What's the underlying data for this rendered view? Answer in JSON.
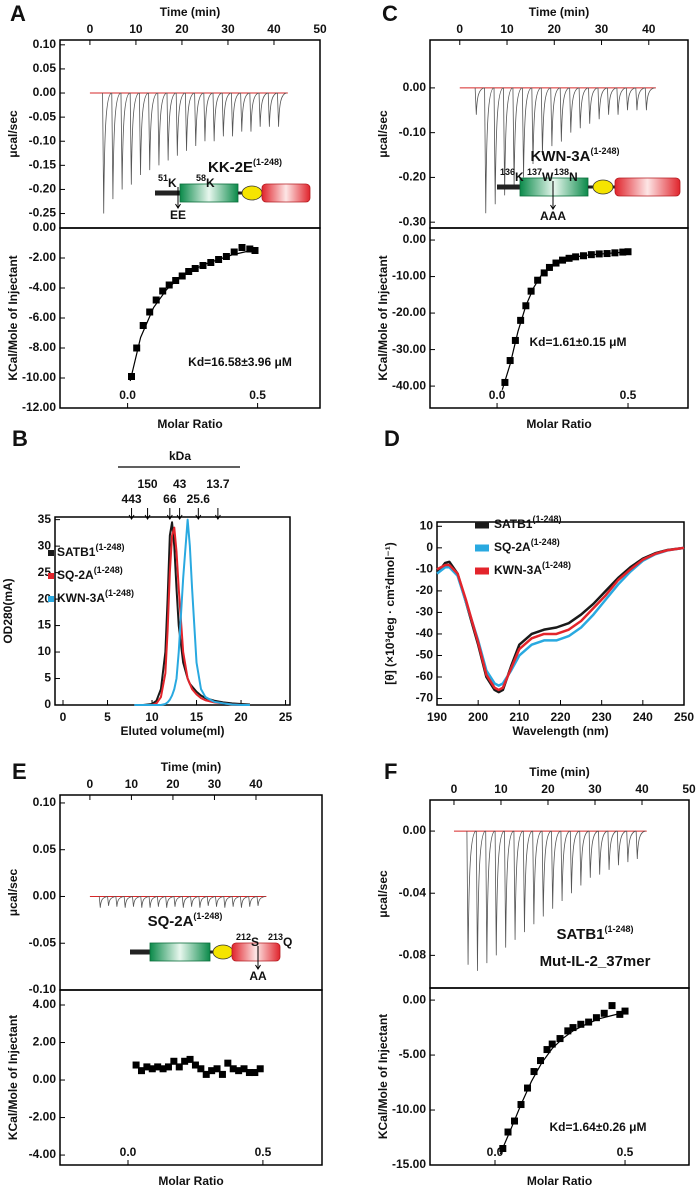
{
  "chart_data": [
    {
      "type": "thermogram",
      "panel": "A",
      "xlabel": "Time (min)",
      "ylabel": "μcal/sec",
      "xlim": [
        -6.5,
        50
      ],
      "ylim": [
        -0.28,
        0.11
      ],
      "xticks": [
        0,
        10,
        20,
        30,
        40,
        50
      ],
      "yticks": [
        {
          "value": 0.1,
          "label": "0.10"
        },
        {
          "value": 0.05,
          "label": "0.05"
        },
        {
          "value": 0,
          "label": "0.00"
        },
        {
          "value": -0.05,
          "label": "-0.05"
        },
        {
          "value": -0.1,
          "label": "-0.10"
        },
        {
          "value": -0.15,
          "label": "-0.15"
        },
        {
          "value": -0.2,
          "label": "-0.20"
        },
        {
          "value": -0.25,
          "label": "-0.25"
        }
      ],
      "x": [
        3,
        5,
        7,
        9,
        11,
        13,
        15,
        17,
        19,
        21,
        23,
        25,
        27,
        29,
        31,
        33,
        35,
        37,
        39,
        41
      ],
      "values": [
        -0.25,
        -0.22,
        -0.2,
        -0.19,
        -0.17,
        -0.16,
        -0.15,
        -0.14,
        -0.13,
        -0.12,
        -0.11,
        -0.1,
        -0.1,
        -0.09,
        -0.09,
        -0.08,
        -0.08,
        -0.07,
        -0.07,
        -0.07
      ],
      "color": "#555555",
      "baseline_color": "#d62728",
      "inset": {
        "label": "KK-2E",
        "label_sup": "(1-248)",
        "sites": [
          {
            "number": "51",
            "residue": "K"
          },
          {
            "number": "58",
            "residue": "K"
          }
        ],
        "mutation": "EE"
      }
    },
    {
      "type": "isotherm",
      "xlabel": "Molar Ratio",
      "ylabel": "KCal/Mole of Injectant",
      "xlim": [
        -0.26,
        0.74
      ],
      "ylim": [
        -12,
        0
      ],
      "xticks": [
        {
          "value": 0,
          "label": "0.0"
        },
        {
          "value": 0.5,
          "label": "0.5"
        }
      ],
      "yticks": [
        {
          "value": 0,
          "label": "0.00"
        },
        {
          "value": -2,
          "label": "-2.00"
        },
        {
          "value": -4,
          "label": "-4.00"
        },
        {
          "value": -6,
          "label": "-6.00"
        },
        {
          "value": -8,
          "label": "-8.00"
        },
        {
          "value": -10,
          "label": "-10.00"
        },
        {
          "value": -12,
          "label": "-12.00"
        }
      ],
      "x": [
        0.015,
        0.035,
        0.06,
        0.085,
        0.11,
        0.135,
        0.16,
        0.185,
        0.21,
        0.235,
        0.26,
        0.29,
        0.32,
        0.35,
        0.38,
        0.41,
        0.44,
        0.47,
        0.49
      ],
      "values": [
        -9.9,
        -8,
        -6.5,
        -5.6,
        -4.8,
        -4.2,
        -3.8,
        -3.5,
        -3.2,
        -2.9,
        -2.7,
        -2.5,
        -2.3,
        -2.1,
        -1.9,
        -1.6,
        -1.3,
        -1.4,
        -1.5
      ],
      "color": "#000000",
      "fit": {
        "x": [
          0.01,
          0.05,
          0.1,
          0.15,
          0.2,
          0.25,
          0.3,
          0.35,
          0.4,
          0.45,
          0.5
        ],
        "values": [
          -10.2,
          -7.3,
          -5.3,
          -4.1,
          -3.3,
          -2.8,
          -2.4,
          -2.1,
          -1.8,
          -1.6,
          -1.4
        ]
      },
      "annotation": "Kd=16.58±3.96 μM"
    },
    {
      "type": "thermogram",
      "panel": "C",
      "xlabel": "Time (min)",
      "ylabel": "μcal/sec",
      "xlim": [
        -6.3,
        48.3
      ],
      "ylim": [
        -0.313,
        0.107
      ],
      "xticks": [
        0,
        10,
        20,
        30,
        40
      ],
      "yticks": [
        {
          "value": 0,
          "label": "0.00"
        },
        {
          "value": -0.1,
          "label": "-0.10"
        },
        {
          "value": -0.2,
          "label": "-0.20"
        },
        {
          "value": -0.3,
          "label": "-0.30"
        }
      ],
      "x": [
        3.5,
        5.5,
        7.5,
        9.5,
        11.5,
        13.5,
        15.5,
        17.5,
        19.5,
        21.5,
        23.5,
        25.5,
        27.5,
        29.5,
        31.5,
        33.5,
        35.5,
        37.5,
        39.5
      ],
      "values": [
        -0.06,
        -0.28,
        -0.26,
        -0.24,
        -0.22,
        -0.2,
        -0.17,
        -0.15,
        -0.13,
        -0.12,
        -0.1,
        -0.09,
        -0.08,
        -0.07,
        -0.06,
        -0.06,
        -0.05,
        -0.05,
        -0.05
      ],
      "color": "#555555",
      "baseline_color": "#d62728",
      "inset": {
        "label": "KWN-3A",
        "label_sup": "(1-248)",
        "sites": [
          {
            "number": "136",
            "residue": "K"
          },
          {
            "number": "137",
            "residue": "W"
          },
          {
            "number": "138",
            "residue": "N"
          }
        ],
        "mutation": "AAA"
      }
    },
    {
      "type": "isotherm",
      "xlabel": "Molar Ratio",
      "ylabel": "KCal/Mole of Injectant",
      "xlim": [
        -0.256,
        0.729
      ],
      "ylim": [
        -46,
        3.3
      ],
      "xticks": [
        {
          "value": 0,
          "label": "0.0"
        },
        {
          "value": 0.5,
          "label": "0.5"
        }
      ],
      "yticks": [
        {
          "value": 0,
          "label": "0.00"
        },
        {
          "value": -10,
          "label": "-10.00"
        },
        {
          "value": -20,
          "label": "-20.00"
        },
        {
          "value": -30,
          "label": "-30.00"
        },
        {
          "value": -40,
          "label": "-40.00"
        }
      ],
      "x": [
        0.03,
        0.05,
        0.07,
        0.09,
        0.11,
        0.13,
        0.155,
        0.18,
        0.2,
        0.225,
        0.25,
        0.275,
        0.3,
        0.33,
        0.36,
        0.39,
        0.42,
        0.45,
        0.48,
        0.5
      ],
      "values": [
        -39,
        -33,
        -27.5,
        -22,
        -18,
        -14,
        -11,
        -9,
        -7.5,
        -6.3,
        -5.5,
        -5,
        -4.6,
        -4.3,
        -4,
        -3.8,
        -3.7,
        -3.5,
        -3.3,
        -3.2
      ],
      "color": "#000000",
      "fit": {
        "x": [
          0.02,
          0.05,
          0.08,
          0.11,
          0.14,
          0.17,
          0.2,
          0.25,
          0.3,
          0.35,
          0.4,
          0.45,
          0.5
        ],
        "values": [
          -41,
          -34,
          -25,
          -18,
          -13,
          -9.5,
          -7.5,
          -5.5,
          -4.6,
          -4.1,
          -3.8,
          -3.5,
          -3.3
        ]
      },
      "annotation": "Kd=1.61±0.15 μM"
    },
    {
      "type": "line",
      "panel": "B",
      "xlabel": "Eluted volume(ml)",
      "ylabel": "OD280(mA)",
      "xlim": [
        -0.9,
        25.5
      ],
      "ylim": [
        0,
        35.5
      ],
      "xticks": [
        0,
        5,
        10,
        15,
        20,
        25
      ],
      "yticks": [
        0,
        5,
        10,
        15,
        20,
        25,
        30,
        35
      ],
      "legend": "upper left",
      "x": [
        8,
        9,
        10,
        10.5,
        11,
        11.5,
        11.75,
        12,
        12.25,
        12.5,
        12.75,
        13,
        13.5,
        14,
        14.25,
        14.5,
        15,
        15.5,
        16,
        17,
        18,
        19,
        20,
        21
      ],
      "series": [
        {
          "name": "SATB1",
          "sup": "(1-248)",
          "color": "#1a1a1a",
          "values": [
            0,
            0,
            0.2,
            0.8,
            3,
            10,
            20,
            32,
            34.5,
            30,
            22,
            15,
            8,
            5,
            4,
            3.5,
            2.5,
            1.8,
            1.3,
            0.8,
            0.5,
            0.3,
            0.2,
            0.1
          ]
        },
        {
          "name": "SQ-2A",
          "sup": "(1-248)",
          "color": "#e3242b",
          "values": [
            0,
            0,
            0,
            0.3,
            1.5,
            6,
            14,
            25,
            32,
            33.5,
            29,
            22,
            10,
            5,
            4,
            3,
            2,
            1.3,
            0.9,
            0.5,
            0.3,
            0.1,
            0,
            0
          ]
        },
        {
          "name": "KWN-3A",
          "sup": "(1-248)",
          "color": "#29a9e0",
          "values": [
            0,
            0,
            0,
            0,
            0,
            0.2,
            0.5,
            1,
            1.8,
            3,
            5,
            10,
            24,
            35,
            30,
            22,
            8,
            3,
            1.5,
            0.6,
            0.3,
            0.1,
            0,
            0
          ]
        }
      ],
      "markers": {
        "title": "kDa",
        "labels": [
          "443",
          "150",
          "66",
          "43",
          "25.6",
          "13.7"
        ],
        "x": [
          7.7,
          9.5,
          12.0,
          13.1,
          15.2,
          17.4
        ]
      }
    },
    {
      "type": "line",
      "panel": "D",
      "xlabel": "Wavelength (nm)",
      "ylabel": "[θ] (×10³deg · cm²dmol⁻¹)",
      "xlim": [
        190,
        250
      ],
      "ylim": [
        -73,
        12
      ],
      "xticks": [
        190,
        200,
        210,
        220,
        230,
        240,
        250
      ],
      "yticks": [
        10,
        0,
        -10,
        -20,
        -30,
        -40,
        -50,
        -60,
        -70
      ],
      "legend": "upper center",
      "x": [
        190,
        192,
        193,
        195,
        197,
        200,
        202,
        204,
        205,
        206,
        208,
        210,
        213,
        216,
        219,
        222,
        225,
        228,
        231,
        234,
        237,
        240,
        243,
        246,
        250
      ],
      "series": [
        {
          "name": "SATB1",
          "sup": "(1-248)",
          "color": "#1a1a1a",
          "values": [
            -12,
            -7,
            -6.5,
            -12,
            -25,
            -45,
            -60,
            -66,
            -67,
            -66,
            -55,
            -45,
            -40,
            -38,
            -37,
            -35,
            -31,
            -26,
            -20,
            -14,
            -9,
            -5,
            -2.5,
            -1,
            0
          ]
        },
        {
          "name": "SQ-2A",
          "sup": "(1-248)",
          "color": "#29a9e0",
          "values": [
            -12,
            -9,
            -9,
            -13,
            -25,
            -43,
            -57,
            -63,
            -64,
            -63,
            -57,
            -50,
            -45,
            -43,
            -43,
            -41,
            -37,
            -31,
            -24,
            -17,
            -11,
            -6,
            -3,
            -1.2,
            0
          ]
        },
        {
          "name": "KWN-3A",
          "sup": "(1-248)",
          "color": "#e3242b",
          "values": [
            -10,
            -8,
            -8,
            -12,
            -24,
            -44,
            -59,
            -65,
            -66,
            -65,
            -56,
            -47,
            -42,
            -40,
            -40,
            -38,
            -34,
            -28,
            -22,
            -15,
            -10,
            -5.5,
            -2.8,
            -1.1,
            0
          ]
        }
      ]
    },
    {
      "type": "thermogram",
      "panel": "E",
      "xlabel": "Time (min)",
      "ylabel": "μcal/sec",
      "xlim": [
        -7.2,
        55.9
      ],
      "ylim": [
        -0.1,
        0.1085
      ],
      "xticks": [
        0,
        10,
        20,
        30,
        40
      ],
      "yticks": [
        {
          "value": 0.1,
          "label": "0.10"
        },
        {
          "value": 0.05,
          "label": "0.05"
        },
        {
          "value": 0,
          "label": "0.00"
        },
        {
          "value": -0.05,
          "label": "-0.05"
        },
        {
          "value": -0.1,
          "label": "-0.10"
        }
      ],
      "x": [
        2.5,
        4.5,
        6.5,
        8.5,
        10.5,
        12.5,
        14.5,
        16.5,
        18.5,
        20.5,
        22.5,
        24.5,
        26.5,
        28.5,
        30.5,
        32.5,
        34.5,
        36.5,
        38.5,
        40.5
      ],
      "values": [
        -0.012,
        -0.01,
        -0.011,
        -0.012,
        -0.011,
        -0.012,
        -0.012,
        -0.011,
        -0.012,
        -0.011,
        -0.012,
        -0.011,
        -0.012,
        -0.01,
        -0.011,
        -0.012,
        -0.011,
        -0.012,
        -0.011,
        -0.01
      ],
      "color": "#555555",
      "baseline_color": "#d62728",
      "inset": {
        "label": "SQ-2A",
        "label_sup": "(1-248)",
        "sites": [
          {
            "number": "212",
            "residue": "S"
          },
          {
            "number": "213",
            "residue": "Q"
          }
        ],
        "mutation": "AA"
      }
    },
    {
      "type": "isotherm",
      "xlabel": "Molar Ratio",
      "ylabel": "KCal/Mole of Injectant",
      "xlim": [
        -0.252,
        0.719
      ],
      "ylim": [
        -4.53,
        4.8
      ],
      "xticks": [
        {
          "value": 0,
          "label": "0.0"
        },
        {
          "value": 0.5,
          "label": "0.5"
        }
      ],
      "yticks": [
        {
          "value": 4,
          "label": "4.00"
        },
        {
          "value": 2,
          "label": "2.00"
        },
        {
          "value": 0,
          "label": "0.00"
        },
        {
          "value": -2,
          "label": "-2.00"
        },
        {
          "value": -4,
          "label": "-4.00"
        }
      ],
      "x": [
        0.03,
        0.05,
        0.07,
        0.09,
        0.11,
        0.13,
        0.15,
        0.17,
        0.19,
        0.21,
        0.23,
        0.25,
        0.27,
        0.29,
        0.31,
        0.33,
        0.35,
        0.37,
        0.39,
        0.41,
        0.43,
        0.45,
        0.47,
        0.49
      ],
      "values": [
        0.8,
        0.5,
        0.7,
        0.6,
        0.7,
        0.6,
        0.7,
        1.0,
        0.7,
        1.0,
        1.1,
        0.8,
        0.6,
        0.3,
        0.5,
        0.6,
        0.3,
        0.9,
        0.6,
        0.5,
        0.6,
        0.4,
        0.4,
        0.6
      ],
      "color": "#000000"
    },
    {
      "type": "thermogram",
      "panel": "F",
      "xlabel": "Time (min)",
      "ylabel": "μcal/sec",
      "xlim": [
        -5.1,
        50
      ],
      "ylim": [
        -0.101,
        0.02
      ],
      "xticks": [
        0,
        10,
        20,
        30,
        40,
        50
      ],
      "yticks": [
        {
          "value": 0,
          "label": "0.00"
        },
        {
          "value": -0.04,
          "label": "-0.04"
        },
        {
          "value": -0.08,
          "label": "-0.08"
        }
      ],
      "x": [
        3,
        5,
        7,
        9,
        11,
        13,
        15,
        17,
        19,
        21,
        23,
        25,
        27,
        29,
        31,
        33,
        35,
        37,
        39
      ],
      "values": [
        -0.086,
        -0.09,
        -0.085,
        -0.08,
        -0.075,
        -0.07,
        -0.065,
        -0.06,
        -0.055,
        -0.05,
        -0.045,
        -0.04,
        -0.035,
        -0.03,
        -0.028,
        -0.025,
        -0.022,
        -0.02,
        -0.018
      ],
      "color": "#555555",
      "baseline_color": "#d62728",
      "inset": {
        "label": "SATB1",
        "label_sup": "(1-248)",
        "subtitle": "Mut-IL-2_37mer"
      }
    },
    {
      "type": "isotherm",
      "xlabel": "Molar Ratio",
      "ylabel": "KCal/Mole of Injectant",
      "xlim": [
        -0.25,
        0.746
      ],
      "ylim": [
        -15,
        1.1
      ],
      "xticks": [
        {
          "value": 0,
          "label": "0.0"
        },
        {
          "value": 0.5,
          "label": "0.5"
        }
      ],
      "yticks": [
        {
          "value": 0,
          "label": "0.00"
        },
        {
          "value": -5,
          "label": "-5.00"
        },
        {
          "value": -10,
          "label": "-10.00"
        },
        {
          "value": -15,
          "label": "-15.00"
        }
      ],
      "x": [
        0.03,
        0.05,
        0.075,
        0.1,
        0.125,
        0.15,
        0.175,
        0.2,
        0.22,
        0.25,
        0.28,
        0.3,
        0.33,
        0.36,
        0.39,
        0.42,
        0.45,
        0.48,
        0.5
      ],
      "values": [
        -13.5,
        -12,
        -11,
        -9.5,
        -8,
        -6.5,
        -5.5,
        -4.5,
        -4,
        -3.5,
        -2.8,
        -2.5,
        -2.2,
        -2,
        -1.6,
        -1.2,
        -0.5,
        -1.3,
        -1
      ],
      "color": "#000000",
      "fit": {
        "x": [
          0.02,
          0.06,
          0.1,
          0.14,
          0.18,
          0.22,
          0.26,
          0.3,
          0.35,
          0.4,
          0.45,
          0.5
        ],
        "values": [
          -14,
          -11.8,
          -9.5,
          -7.4,
          -5.7,
          -4.4,
          -3.5,
          -2.8,
          -2.2,
          -1.7,
          -1.4,
          -1.1
        ]
      },
      "annotation": "Kd=1.64±0.26 μM"
    }
  ]
}
